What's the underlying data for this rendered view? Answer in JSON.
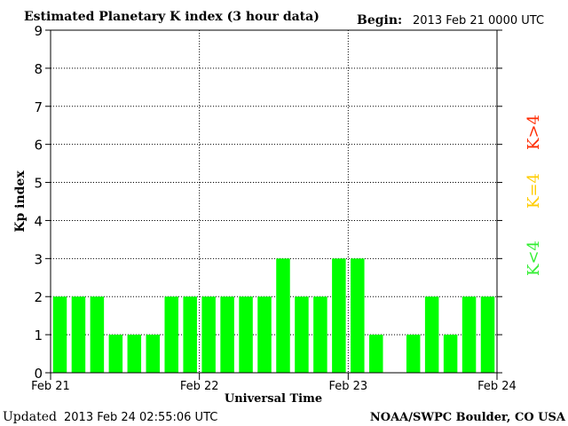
{
  "header": {
    "title": "Estimated Planetary K index (3 hour data)",
    "begin_label": "Begin:",
    "begin_value": "2013 Feb 21 0000 UTC"
  },
  "footer": {
    "updated_label": "Updated",
    "updated_value": "2013 Feb 24 02:55:06 UTC",
    "source": "NOAA/SWPC Boulder, CO USA"
  },
  "legend": {
    "low": {
      "label": "K<4",
      "color": "#33ee33"
    },
    "mid": {
      "label": "K=4",
      "color": "#ffcc00"
    },
    "high": {
      "label": "K>4",
      "color": "#ff2a00"
    }
  },
  "chart_data": {
    "type": "bar",
    "title": "Estimated Planetary K index (3 hour data)",
    "xlabel": "Universal Time",
    "ylabel": "Kp index",
    "ylim": [
      0,
      9
    ],
    "yticks": [
      0,
      1,
      2,
      3,
      4,
      5,
      6,
      7,
      8,
      9
    ],
    "xticks": [
      "Feb 21",
      "Feb 22",
      "Feb 23",
      "Feb 24"
    ],
    "grid": true,
    "bar_color": "#00ff00",
    "values": [
      2,
      2,
      2,
      1,
      1,
      1,
      2,
      2,
      2,
      2,
      2,
      2,
      3,
      2,
      2,
      3,
      3,
      1,
      0,
      1,
      2,
      1,
      2,
      2
    ]
  }
}
